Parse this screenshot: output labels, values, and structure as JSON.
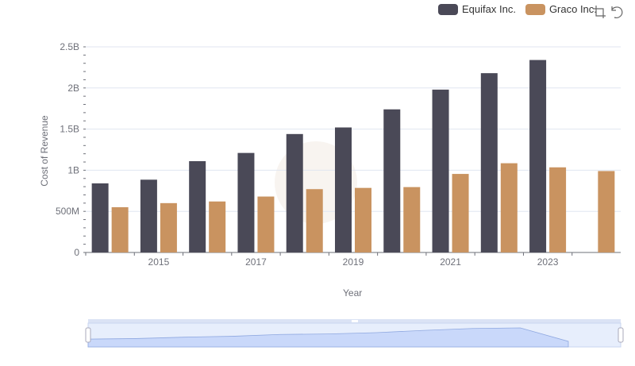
{
  "legend": {
    "items": [
      {
        "label": "Equifax Inc.",
        "color": "#4a4957"
      },
      {
        "label": "Graco Inc.",
        "color": "#c99360"
      }
    ]
  },
  "toolbox": {
    "icons": [
      "zoom-icon",
      "restore-icon"
    ]
  },
  "chart_data": {
    "type": "bar",
    "x": [
      2014,
      2015,
      2016,
      2017,
      2018,
      2019,
      2020,
      2021,
      2022,
      2023,
      2024
    ],
    "xticks": [
      "2015",
      "2017",
      "2019",
      "2021",
      "2023"
    ],
    "series": [
      {
        "name": "Equifax Inc.",
        "color": "#4a4957",
        "values": [
          840000000,
          885000000,
          1110000000,
          1210000000,
          1440000000,
          1520000000,
          1740000000,
          1980000000,
          2180000000,
          2340000000,
          null
        ]
      },
      {
        "name": "Graco Inc.",
        "color": "#c99360",
        "values": [
          550000000,
          600000000,
          620000000,
          680000000,
          770000000,
          785000000,
          795000000,
          955000000,
          1085000000,
          1035000000,
          990000000
        ]
      }
    ],
    "xlabel": "Year",
    "ylabel": "Cost of Revenue",
    "ylim": [
      0,
      2500000000
    ],
    "yticks": [
      {
        "value": 0,
        "label": "0"
      },
      {
        "value": 500000000,
        "label": "500M"
      },
      {
        "value": 1000000000,
        "label": "1B"
      },
      {
        "value": 1500000000,
        "label": "1.5B"
      },
      {
        "value": 2000000000,
        "label": "2B"
      },
      {
        "value": 2500000000,
        "label": "2.5B"
      }
    ],
    "grid": true,
    "legend_position": "top-right",
    "datazoom": {
      "start": 0,
      "end": 100
    }
  }
}
